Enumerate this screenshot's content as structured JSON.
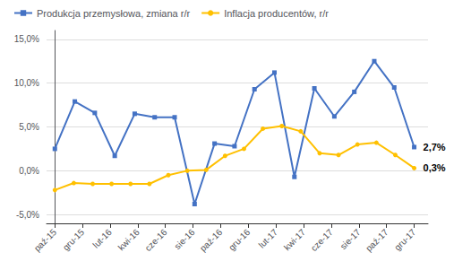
{
  "chart_data": {
    "type": "line",
    "x": [],
    "xlim": [
      -0.3,
      13.5
    ],
    "xticks": [
      {
        "value": 0,
        "label": "paź-15"
      },
      {
        "value": 1,
        "label": "gru-15"
      },
      {
        "value": 2,
        "label": "lut-16"
      },
      {
        "value": 3,
        "label": "kwi-16"
      },
      {
        "value": 4,
        "label": "cze-16"
      },
      {
        "value": 5,
        "label": "sie-16"
      },
      {
        "value": 6,
        "label": "paź-16"
      },
      {
        "value": 7,
        "label": "gru-16"
      },
      {
        "value": 8,
        "label": "lut-17"
      },
      {
        "value": 9,
        "label": "kwi-17"
      },
      {
        "value": 10,
        "label": "cze-17"
      },
      {
        "value": 11,
        "label": "sie-17"
      },
      {
        "value": 12,
        "label": "paź-17"
      },
      {
        "value": 13,
        "label": "gru-17"
      }
    ],
    "ylim": [
      -6.0,
      16.0
    ],
    "yticks": [
      {
        "value": -5.0,
        "label": "-5,0%"
      },
      {
        "value": 0.0,
        "label": "0,0%"
      },
      {
        "value": 5.0,
        "label": "5,0%"
      },
      {
        "value": 10.0,
        "label": "10,0%"
      },
      {
        "value": 15.0,
        "label": "15,0%"
      }
    ],
    "grid": true,
    "legend": "upper left",
    "series": [
      {
        "name": "Produkcja przemysłowa, zmiana r/r",
        "color": "#4472C4",
        "marker": "square",
        "x": [
          0,
          0.722222,
          1.444444,
          2.166667,
          2.888889,
          3.611111,
          4.333333,
          5.055556,
          5.777778,
          6.5,
          7.222222,
          7.944444,
          8.666667,
          9.388889,
          10.111111,
          10.833333,
          11.555556,
          12.277778,
          13
        ],
        "values": [
          2.5,
          7.9,
          6.6,
          1.7,
          6.5,
          6.1,
          6.1,
          -3.8,
          3.1,
          2.8,
          9.3,
          11.2,
          -0.7,
          9.4,
          6.2,
          9.0,
          12.5,
          9.5,
          2.7
        ]
      },
      {
        "name": "Inflacja producentów, r/r",
        "color": "#FFC000",
        "marker": "circle",
        "x": [
          0,
          0.684211,
          1.368421,
          2.052632,
          2.736842,
          3.421053,
          4.105263,
          4.789474,
          5.473684,
          6.157895,
          6.842105,
          7.526316,
          8.210526,
          8.894737,
          9.578947,
          10.263158,
          10.947368,
          11.631579,
          12.315789,
          13
        ],
        "values": [
          -2.2,
          -1.4,
          -1.5,
          -1.5,
          -1.5,
          -1.5,
          -0.5,
          0.0,
          0.1,
          1.7,
          2.5,
          4.8,
          5.1,
          4.5,
          2.0,
          1.8,
          3.0,
          3.2,
          1.8,
          0.3
        ]
      }
    ],
    "annotations": [
      {
        "text": "2,7%",
        "x": 13,
        "y": 2.7
      },
      {
        "text": "0,3%",
        "x": 13,
        "y": 0.3
      }
    ]
  }
}
